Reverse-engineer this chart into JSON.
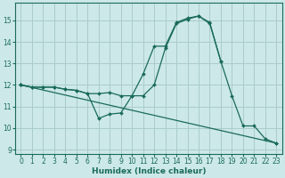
{
  "xlabel": "Humidex (Indice chaleur)",
  "background_color": "#cce8e8",
  "grid_color": "#aacccc",
  "line_color": "#1a6b5a",
  "ylim": [
    8.8,
    15.8
  ],
  "xlim": [
    -0.5,
    23.5
  ],
  "yticks": [
    9,
    10,
    11,
    12,
    13,
    14,
    15
  ],
  "xticks": [
    0,
    1,
    2,
    3,
    4,
    5,
    6,
    7,
    8,
    9,
    10,
    11,
    12,
    13,
    14,
    15,
    16,
    17,
    18,
    19,
    20,
    21,
    22,
    23
  ],
  "line1_x": [
    0,
    1,
    2,
    3,
    4,
    5,
    6,
    7,
    8,
    9,
    10,
    11,
    12,
    13,
    14,
    15,
    16,
    17,
    18,
    19,
    20,
    21,
    22,
    23
  ],
  "line1_y": [
    12.0,
    11.9,
    11.9,
    11.9,
    11.8,
    11.75,
    11.6,
    11.6,
    11.65,
    11.5,
    11.5,
    12.5,
    13.8,
    13.8,
    14.9,
    15.1,
    15.2,
    14.9,
    13.1,
    11.5,
    10.1,
    10.1,
    9.5,
    9.3
  ],
  "line2_x": [
    0,
    1,
    2,
    3,
    4,
    5,
    6,
    7,
    8,
    9,
    10,
    11,
    12,
    13,
    14,
    15,
    16,
    17,
    18
  ],
  "line2_y": [
    12.0,
    11.9,
    11.9,
    11.9,
    11.8,
    11.75,
    11.6,
    10.45,
    10.65,
    10.7,
    11.5,
    11.5,
    12.0,
    13.7,
    14.85,
    15.05,
    15.2,
    14.85,
    13.1
  ],
  "line3_x": [
    0,
    23
  ],
  "line3_y": [
    12.0,
    9.3
  ]
}
